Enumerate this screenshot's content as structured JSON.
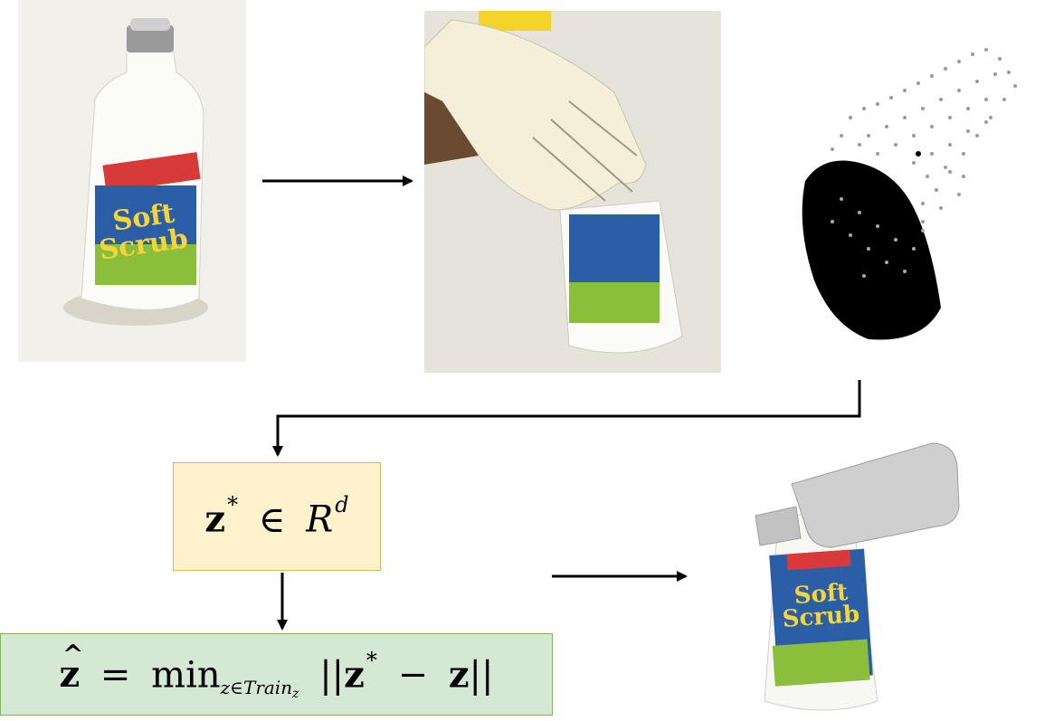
{
  "images": {
    "bottle_photo": "",
    "grasp_photo": "",
    "pointcloud": "",
    "reconstruction": ""
  },
  "latent_box": {
    "z": "z",
    "star": "*",
    "in": "∈",
    "space": "R",
    "dim": "d"
  },
  "nn_box": {
    "zhat": "z",
    "eq": "=",
    "min": "min",
    "subscript": "z∈Train",
    "subscript2": "z",
    "norm_open": "||",
    "z1": "z",
    "star": "*",
    "minus": "−",
    "z2": "z",
    "norm_close": "||"
  },
  "colors": {
    "latent_fill": "#fff2cc",
    "latent_border": "#d6b656",
    "nn_fill": "#d5e8d4",
    "nn_border": "#82b366"
  }
}
